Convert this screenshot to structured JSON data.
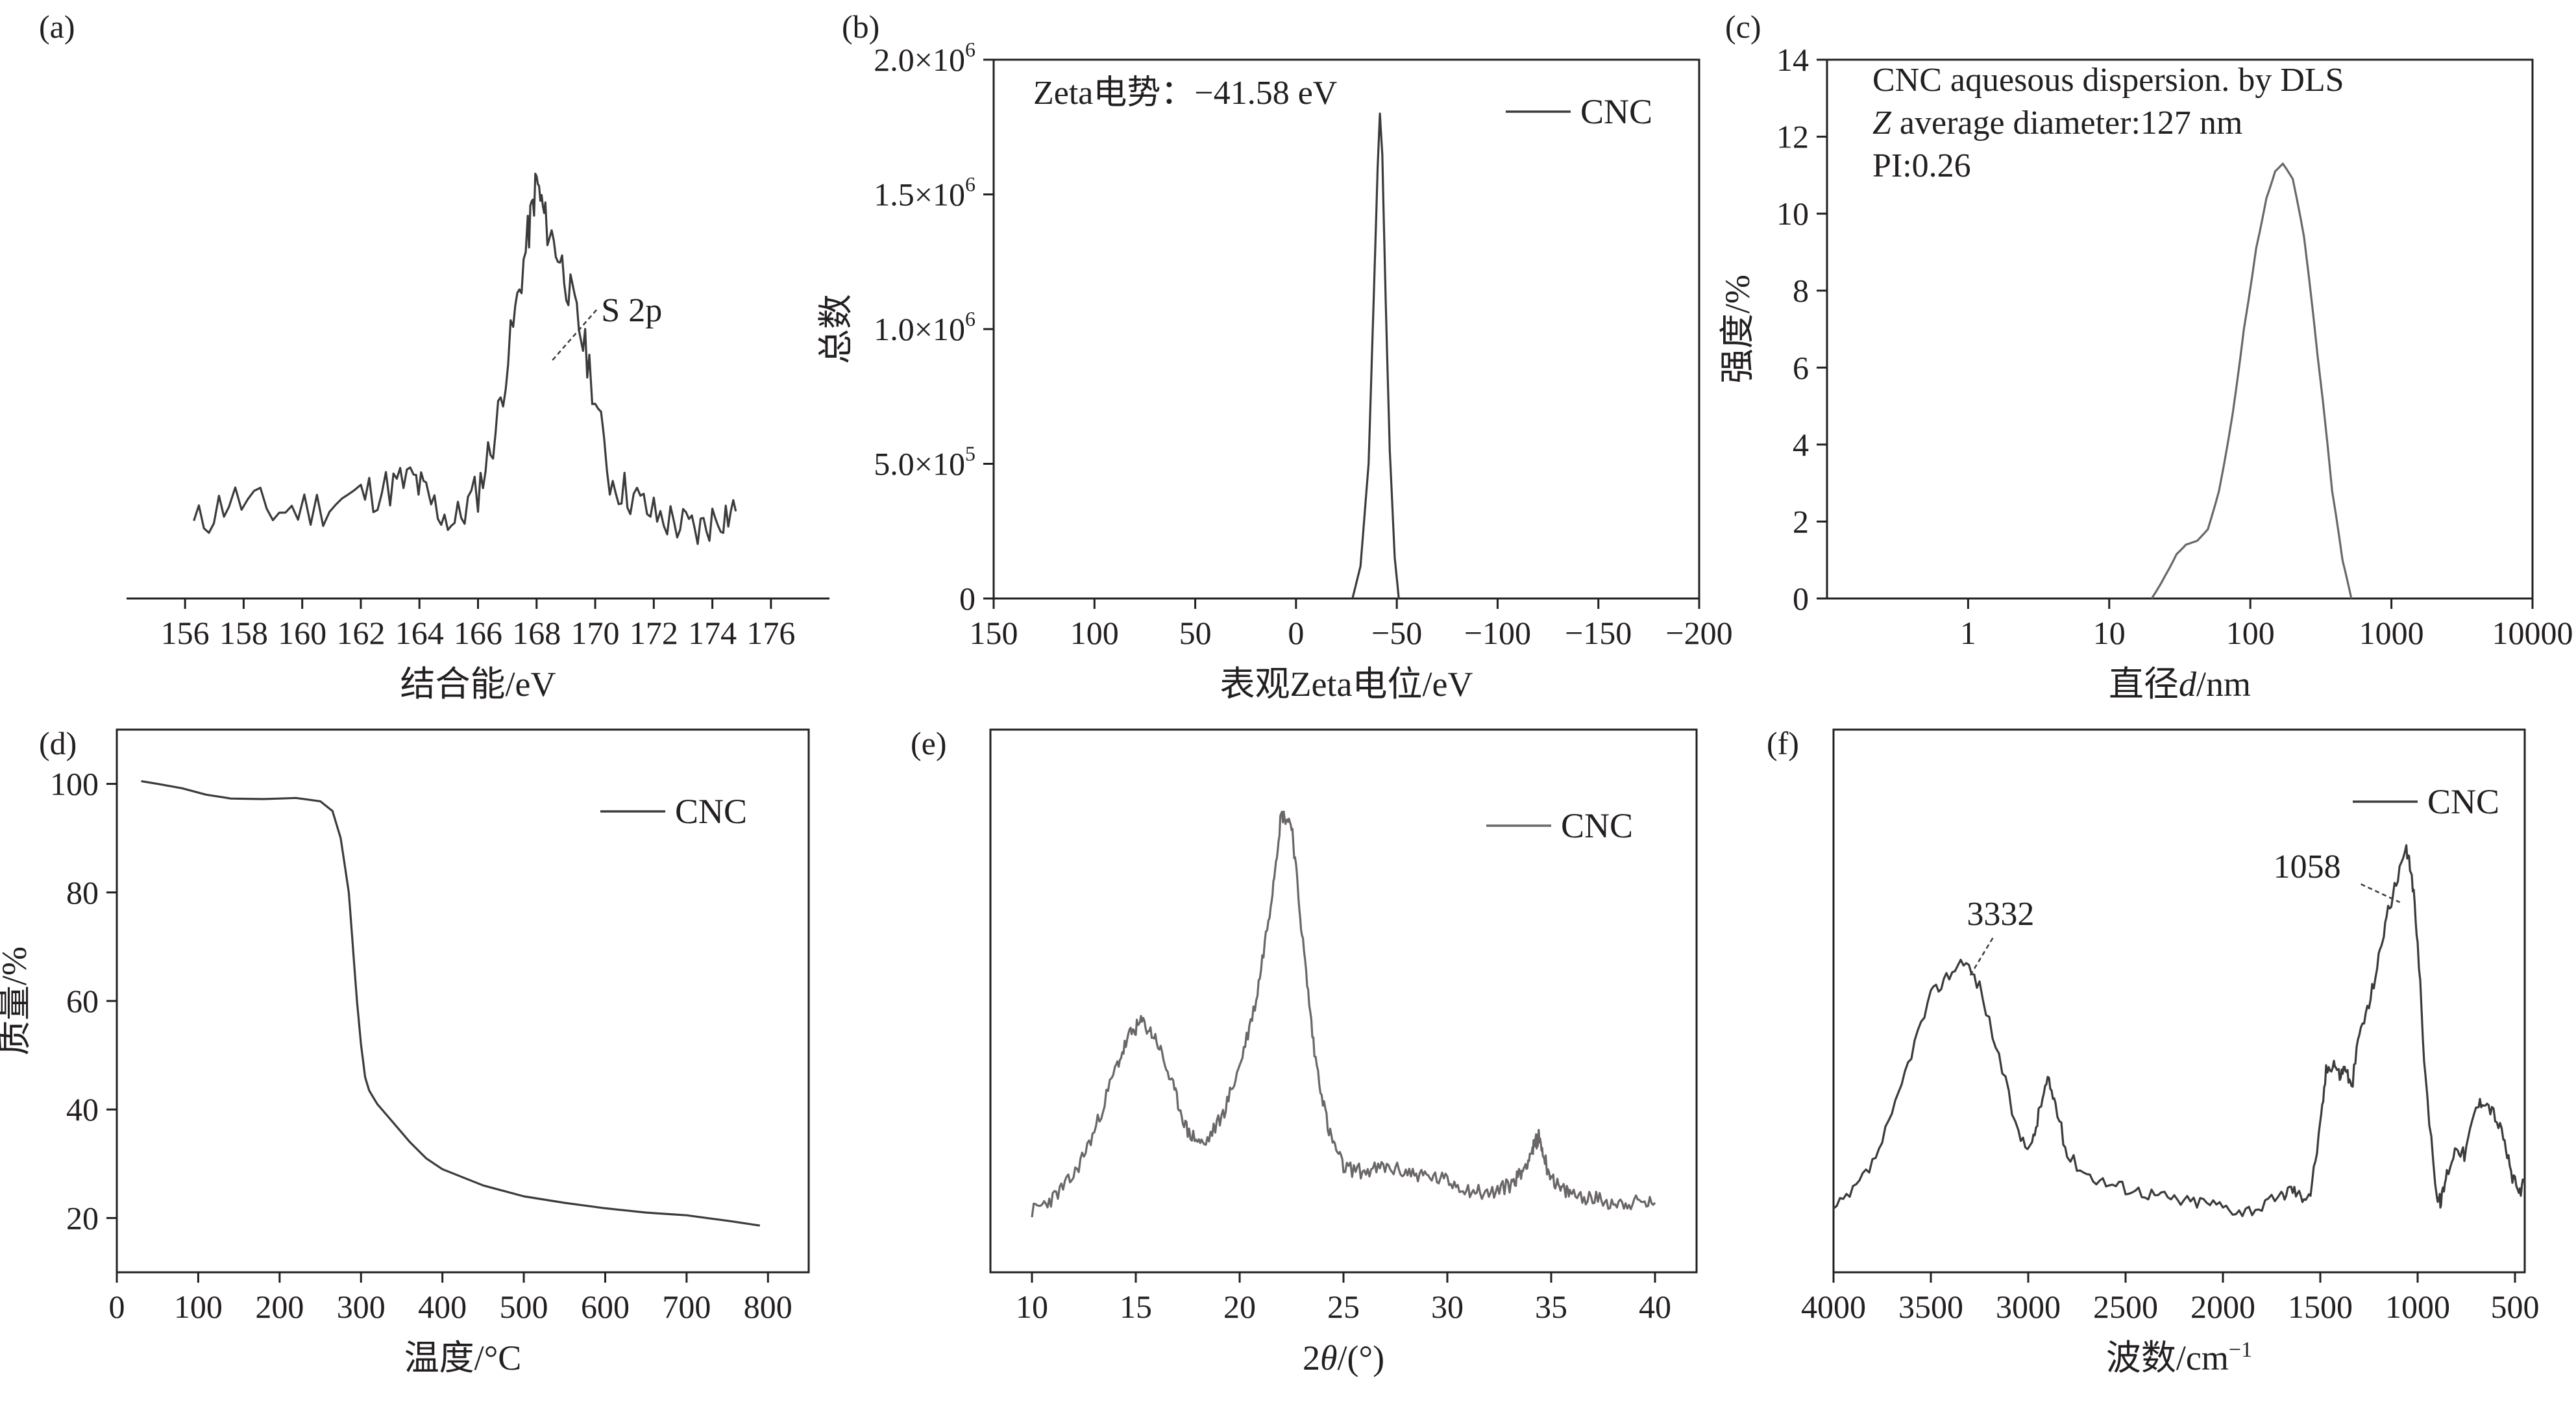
{
  "colors": {
    "axis": "#231f20",
    "series": "#3d3a3b",
    "series_light": "#6b6768"
  },
  "chart_data": [
    {
      "id": "a",
      "type": "line",
      "panel_label": "(a)",
      "xlabel": "结合能/eV",
      "ylabel": "",
      "xlim": [
        155,
        177
      ],
      "ylim": [
        0,
        1
      ],
      "xticks": [
        "156",
        "158",
        "160",
        "162",
        "164",
        "166",
        "168",
        "170",
        "172",
        "174",
        "176"
      ],
      "xtick_values": [
        156,
        158,
        160,
        162,
        164,
        166,
        168,
        170,
        172,
        174,
        176
      ],
      "legend": "",
      "annotations": [
        {
          "text": "S 2p",
          "x": 168.1,
          "y": 0.8
        }
      ],
      "series": [
        {
          "x": [
            156.3,
            157.5,
            159,
            160.5,
            162,
            163,
            163.8,
            164.4,
            165.2,
            166,
            166.6,
            167.2,
            167.7,
            168.0,
            168.3,
            168.8,
            169.3,
            169.8,
            170.5,
            171.2,
            172,
            172.8,
            173.5,
            174.2,
            174.8
          ],
          "y": [
            0.08,
            0.15,
            0.12,
            0.13,
            0.16,
            0.18,
            0.2,
            0.14,
            0.09,
            0.17,
            0.32,
            0.58,
            0.8,
            0.94,
            0.84,
            0.75,
            0.62,
            0.48,
            0.2,
            0.16,
            0.11,
            0.09,
            0.07,
            0.11,
            0.12
          ]
        }
      ]
    },
    {
      "id": "b",
      "type": "line",
      "panel_label": "(b)",
      "xlabel": "表观Zeta电位/eV",
      "ylabel": "总数",
      "xlim": [
        150,
        -200
      ],
      "ylim": [
        0,
        2000000
      ],
      "xticks": [
        "150",
        "100",
        "50",
        "0",
        "−50",
        "−100",
        "−150",
        "−200"
      ],
      "xtick_values": [
        150,
        100,
        50,
        0,
        -50,
        -100,
        -150,
        -200
      ],
      "ytick_values": [
        0,
        500000,
        1000000,
        1500000,
        2000000
      ],
      "ytick_mantissas": [
        "0",
        "5.0×10",
        "1.0×10",
        "1.5×10",
        "2.0×10"
      ],
      "ytick_exponents": [
        "",
        "5",
        "6",
        "6",
        "6"
      ],
      "legend": "CNC",
      "annotations": [
        {
          "text": "Zeta电势：−41.58 eV"
        }
      ],
      "series": [
        {
          "name": "CNC",
          "x": [
            -28,
            -32,
            -36,
            -38.5,
            -40.5,
            -41.6,
            -42.8,
            -44.5,
            -46.5,
            -49,
            -51
          ],
          "y": [
            0,
            120000,
            500000,
            1100000,
            1600000,
            1800000,
            1650000,
            1100000,
            550000,
            150000,
            0
          ]
        }
      ]
    },
    {
      "id": "c",
      "type": "line",
      "panel_label": "(c)",
      "xlabel": "直径d/nm",
      "ylabel": "强度/%",
      "xscale": "log",
      "xlim": [
        0.1,
        10000
      ],
      "ylim": [
        0,
        14
      ],
      "xticks": [
        "1",
        "10",
        "100",
        "1000",
        "10000"
      ],
      "xtick_values": [
        1,
        10,
        100,
        1000,
        10000
      ],
      "yticks": [
        "0",
        "2",
        "4",
        "6",
        "8",
        "10",
        "12",
        "14"
      ],
      "ytick_values": [
        0,
        2,
        4,
        6,
        8,
        10,
        12,
        14
      ],
      "legend": "",
      "annotations": [
        {
          "text": "CNC aquesous dispersion. by DLS"
        },
        {
          "prefix": "Z",
          "text": " average diameter:127 nm"
        },
        {
          "text": "PI:0.26"
        }
      ],
      "series": [
        {
          "x": [
            20,
            25,
            30,
            35,
            42,
            50,
            60,
            75,
            90,
            110,
            130,
            150,
            170,
            200,
            240,
            300,
            380,
            450,
            520
          ],
          "y": [
            0,
            0.6,
            1.15,
            1.4,
            1.5,
            1.8,
            2.8,
            4.8,
            7.0,
            9.1,
            10.4,
            11.1,
            11.3,
            10.9,
            9.4,
            6.3,
            2.8,
            1.0,
            0
          ]
        }
      ]
    },
    {
      "id": "d",
      "type": "line",
      "panel_label": "(d)",
      "xlabel": "温度/°C",
      "ylabel": "质量/%",
      "xlim": [
        0,
        850
      ],
      "ylim": [
        10,
        110
      ],
      "xticks": [
        "0",
        "100",
        "200",
        "300",
        "400",
        "500",
        "600",
        "700",
        "800"
      ],
      "xtick_values": [
        0,
        100,
        200,
        300,
        400,
        500,
        600,
        700,
        800
      ],
      "yticks": [
        "20",
        "40",
        "60",
        "80",
        "100"
      ],
      "ytick_values": [
        20,
        40,
        60,
        80,
        100
      ],
      "legend": "CNC",
      "series": [
        {
          "name": "CNC",
          "x": [
            30,
            50,
            80,
            110,
            140,
            180,
            220,
            250,
            265,
            275,
            285,
            290,
            295,
            300,
            305,
            310,
            320,
            340,
            360,
            380,
            400,
            450,
            500,
            550,
            600,
            650,
            700,
            750,
            790
          ],
          "y": [
            100.5,
            100,
            99.2,
            98,
            97.3,
            97.2,
            97.4,
            96.8,
            95,
            90,
            80,
            70,
            60,
            52,
            46,
            43.5,
            41,
            37.5,
            34,
            31,
            29,
            26,
            24,
            22.8,
            21.8,
            21,
            20.5,
            19.5,
            18.6
          ]
        }
      ]
    },
    {
      "id": "e",
      "type": "line",
      "panel_label": "(e)",
      "xlabel": "2θ/(°)",
      "ylabel": "",
      "xlim": [
        8,
        42
      ],
      "ylim": [
        0,
        1
      ],
      "xticks": [
        "10",
        "15",
        "20",
        "25",
        "30",
        "35",
        "40"
      ],
      "xtick_values": [
        10,
        15,
        20,
        25,
        30,
        35,
        40
      ],
      "legend": "CNC",
      "series": [
        {
          "name": "CNC",
          "x": [
            10,
            11,
            12,
            13,
            14,
            14.7,
            15.3,
            16,
            16.8,
            17.5,
            18.3,
            19.2,
            20,
            20.8,
            21.5,
            22.0,
            22.5,
            23,
            23.6,
            24.3,
            25,
            26,
            27,
            28,
            29,
            30,
            31,
            32,
            33,
            33.6,
            34.1,
            34.4,
            34.8,
            35.4,
            36,
            37,
            38,
            39,
            40
          ],
          "y": [
            0.02,
            0.05,
            0.1,
            0.2,
            0.34,
            0.42,
            0.45,
            0.41,
            0.3,
            0.2,
            0.17,
            0.24,
            0.35,
            0.5,
            0.72,
            0.92,
            0.9,
            0.65,
            0.38,
            0.2,
            0.12,
            0.11,
            0.12,
            0.11,
            0.1,
            0.09,
            0.07,
            0.06,
            0.08,
            0.11,
            0.16,
            0.19,
            0.12,
            0.07,
            0.06,
            0.05,
            0.04,
            0.04,
            0.04
          ]
        }
      ]
    },
    {
      "id": "f",
      "type": "line",
      "panel_label": "(f)",
      "xlabel": "波数/cm",
      "xlabel_superscript": "−1",
      "ylabel": "",
      "xlim": [
        4000,
        450
      ],
      "ylim": [
        0,
        1
      ],
      "xticks": [
        "4000",
        "3500",
        "3000",
        "2500",
        "2000",
        "1500",
        "1000",
        "500"
      ],
      "xtick_values": [
        4000,
        3500,
        3000,
        2500,
        2000,
        1500,
        1000,
        500
      ],
      "legend": "CNC",
      "annotations": [
        {
          "text": "3332",
          "x": 3332
        },
        {
          "text": "1058",
          "x": 1058
        }
      ],
      "series": [
        {
          "name": "CNC",
          "x": [
            4000,
            3900,
            3800,
            3700,
            3600,
            3500,
            3420,
            3332,
            3250,
            3150,
            3050,
            2980,
            2940,
            2900,
            2860,
            2800,
            2700,
            2600,
            2500,
            2400,
            2300,
            2200,
            2100,
            2000,
            1900,
            1800,
            1700,
            1650,
            1600,
            1550,
            1500,
            1470,
            1430,
            1400,
            1370,
            1340,
            1300,
            1250,
            1200,
            1160,
            1110,
            1058,
            1030,
            1000,
            960,
            900,
            880,
            850,
            800,
            760,
            700,
            660,
            610,
            560,
            520,
            480,
            450
          ],
          "y": [
            0.02,
            0.06,
            0.12,
            0.22,
            0.36,
            0.48,
            0.52,
            0.56,
            0.5,
            0.35,
            0.18,
            0.16,
            0.24,
            0.3,
            0.25,
            0.14,
            0.1,
            0.08,
            0.07,
            0.06,
            0.05,
            0.04,
            0.04,
            0.03,
            0.02,
            0.03,
            0.05,
            0.07,
            0.05,
            0.06,
            0.2,
            0.32,
            0.34,
            0.31,
            0.33,
            0.28,
            0.4,
            0.46,
            0.56,
            0.65,
            0.72,
            0.79,
            0.74,
            0.6,
            0.3,
            0.05,
            0.04,
            0.1,
            0.16,
            0.14,
            0.24,
            0.26,
            0.23,
            0.18,
            0.1,
            0.06,
            0.08
          ]
        }
      ]
    }
  ]
}
